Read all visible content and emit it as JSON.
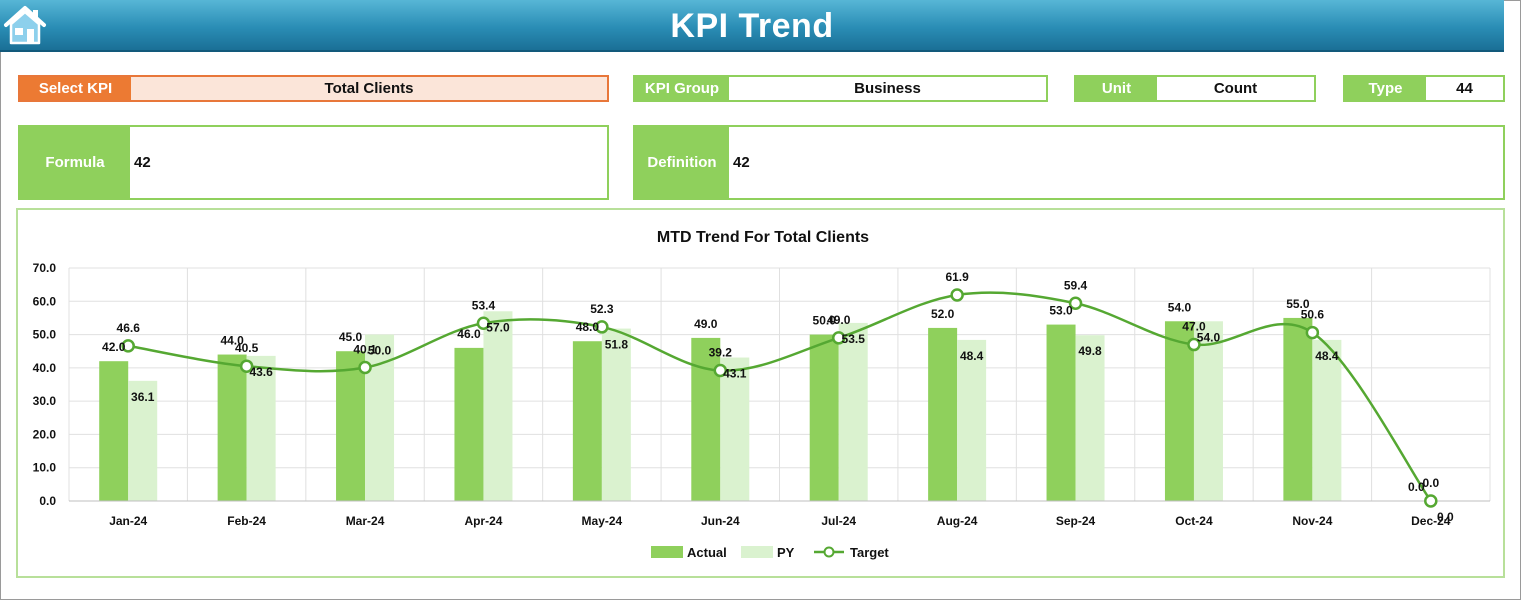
{
  "header": {
    "title": "KPI Trend"
  },
  "kpi": {
    "select_label": "Select KPI",
    "select_value": "Total Clients",
    "group_label": "KPI Group",
    "group_value": "Business",
    "unit_label": "Unit",
    "unit_value": "Count",
    "type_label": "Type",
    "type_value": "44",
    "formula_label": "Formula",
    "formula_value": "42",
    "definition_label": "Definition",
    "definition_value": "42"
  },
  "colors": {
    "header": "#2a8db5",
    "accent": "#ec7a33",
    "green": "#8fd05c",
    "actual": "#8fd05c",
    "py": "#daf2cf",
    "target": "#55a832"
  },
  "chart_data": {
    "type": "bar",
    "title": "MTD Trend For Total Clients",
    "xlabel": "",
    "ylabel": "",
    "ylim": [
      0,
      70
    ],
    "yticks": [
      "0.0",
      "10.0",
      "20.0",
      "30.0",
      "40.0",
      "50.0",
      "60.0",
      "70.0"
    ],
    "grid": true,
    "legend_position": "bottom",
    "categories": [
      "Jan-24",
      "Feb-24",
      "Mar-24",
      "Apr-24",
      "May-24",
      "Jun-24",
      "Jul-24",
      "Aug-24",
      "Sep-24",
      "Oct-24",
      "Nov-24",
      "Dec-24"
    ],
    "series": [
      {
        "name": "Actual",
        "type": "bar",
        "values": [
          42.0,
          44.0,
          45.0,
          46.0,
          48.0,
          49.0,
          50.0,
          52.0,
          53.0,
          54.0,
          55.0,
          0.0
        ]
      },
      {
        "name": "PY",
        "type": "bar",
        "values": [
          36.1,
          43.6,
          50.0,
          57.0,
          51.8,
          43.1,
          53.5,
          48.4,
          49.8,
          54.0,
          48.4,
          0.0
        ]
      },
      {
        "name": "Target",
        "type": "line",
        "values": [
          46.6,
          40.5,
          40.1,
          53.4,
          52.3,
          39.2,
          49.0,
          61.9,
          59.4,
          47.0,
          50.6,
          0.0
        ]
      }
    ]
  }
}
